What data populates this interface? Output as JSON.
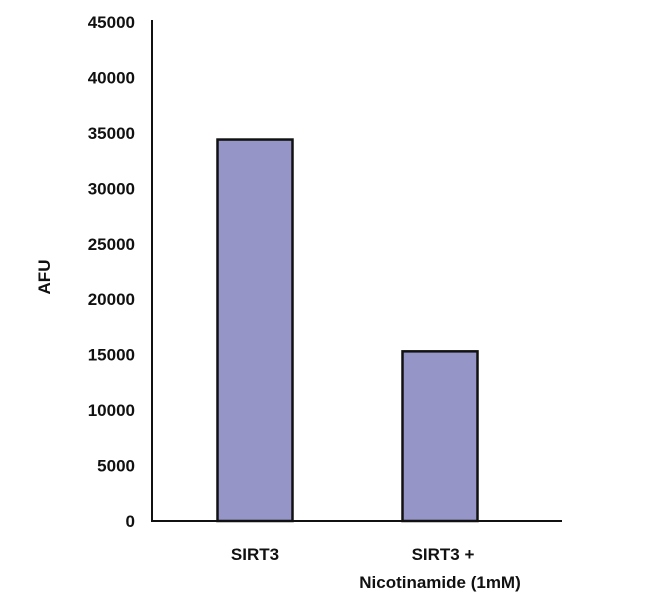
{
  "chart_data": {
    "type": "bar",
    "title": "",
    "xlabel": "",
    "ylabel": "AFU",
    "ylim": [
      0,
      45000
    ],
    "yticks": [
      0,
      5000,
      10000,
      15000,
      20000,
      25000,
      30000,
      35000,
      40000,
      45000
    ],
    "categories": [
      [
        "SIRT3"
      ],
      [
        "SIRT3 +",
        "Nicotinamide (1mM)"
      ]
    ],
    "values": [
      34400,
      15300
    ],
    "bar_color": "#9595c8",
    "grid": false,
    "legend": "none"
  }
}
